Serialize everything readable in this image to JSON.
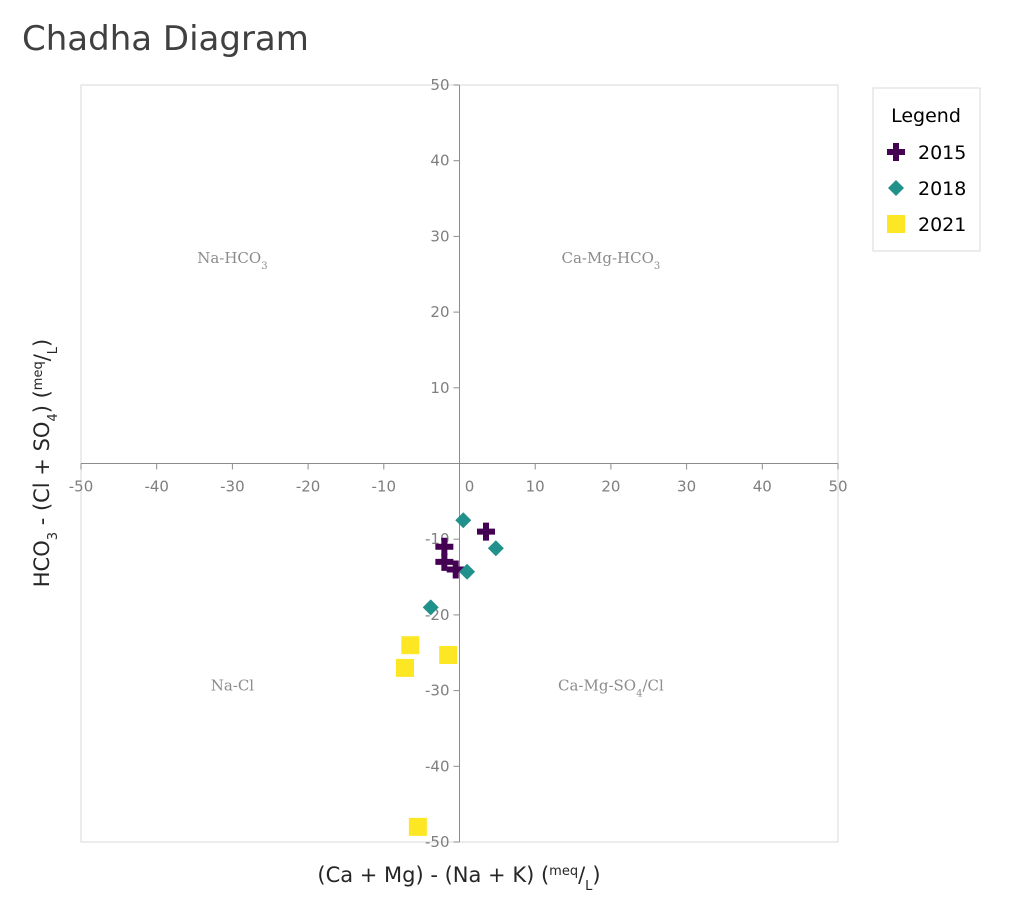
{
  "chart_data": {
    "type": "scatter",
    "title": "Chadha Diagram",
    "xlabel": {
      "parts": [
        "(Ca + Mg) - (Na + K) (",
        "meq",
        "/",
        "L",
        ")"
      ]
    },
    "ylabel": {
      "parts": [
        "HCO",
        "3",
        " - (Cl + SO",
        "4",
        ") (",
        "meq",
        "/",
        "L",
        ")"
      ]
    },
    "xlim": [
      -50,
      50
    ],
    "ylim": [
      -50,
      50
    ],
    "x_ticks": [
      -50,
      -40,
      -30,
      -20,
      -10,
      0,
      10,
      20,
      30,
      40,
      50
    ],
    "y_ticks": [
      -50,
      -40,
      -30,
      -20,
      -10,
      10,
      20,
      30,
      40,
      50
    ],
    "x_tick_labels": [
      "-50",
      "-40",
      "-30",
      "-20",
      "-10",
      "0",
      "10",
      "20",
      "30",
      "40",
      "50"
    ],
    "y_tick_labels": [
      "-50",
      "-40",
      "-30",
      "-20",
      "-10",
      "10",
      "20",
      "30",
      "40",
      "50"
    ],
    "grid": false,
    "legend": {
      "title": "Legend",
      "placement": "right"
    },
    "regions": [
      {
        "base": "Na-HCO",
        "sub": "3",
        "rest": "",
        "x": -30,
        "y": 26.5
      },
      {
        "base": "Ca-Mg-HCO",
        "sub": "3",
        "rest": "",
        "x": 20,
        "y": 26.5
      },
      {
        "base": "Na-Cl",
        "sub": "",
        "rest": "",
        "x": -30,
        "y": -30
      },
      {
        "base": "Ca-Mg-SO",
        "sub": "4",
        "rest": "/Cl",
        "x": 20,
        "y": -30
      }
    ],
    "series": [
      {
        "name": "2015",
        "marker": "plus",
        "color": "#440154",
        "points": [
          [
            3.5,
            -9
          ],
          [
            -2,
            -11
          ],
          [
            -2,
            -13
          ],
          [
            -0.5,
            -14
          ]
        ]
      },
      {
        "name": "2018",
        "marker": "diamond",
        "color": "#21918c",
        "points": [
          [
            0.5,
            -7.5
          ],
          [
            4.8,
            -11.2
          ],
          [
            1,
            -14.3
          ],
          [
            -3.8,
            -19
          ]
        ]
      },
      {
        "name": "2021",
        "marker": "square",
        "color": "#fde725",
        "points": [
          [
            -6.5,
            -24
          ],
          [
            -1.5,
            -25.3
          ],
          [
            -7.2,
            -27
          ],
          [
            -5.5,
            -48
          ]
        ]
      }
    ]
  }
}
